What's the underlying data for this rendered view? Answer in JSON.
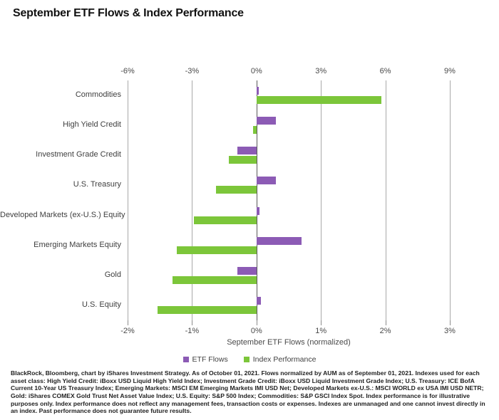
{
  "title": "September ETF Flows & Index Performance",
  "chart_data": {
    "type": "bar",
    "orientation": "horizontal",
    "title": "September ETF Flows & Index Performance",
    "categories": [
      "Commodities",
      "High Yield Credit",
      "Investment Grade Credit",
      "U.S. Treasury",
      "Developed Markets (ex-U.S.) Equity",
      "Emerging Markets Equity",
      "Gold",
      "U.S. Equity"
    ],
    "series": [
      {
        "name": "ETF Flows",
        "axis": "bottom",
        "unit": "%",
        "color": "#8c5bb5",
        "values": [
          0.04,
          0.3,
          -0.3,
          0.3,
          0.05,
          0.7,
          -0.3,
          0.07
        ]
      },
      {
        "name": "Index Performance",
        "axis": "top",
        "unit": "%",
        "color": "#7cc63a",
        "values": [
          5.8,
          -0.15,
          -1.3,
          -1.9,
          -2.9,
          -3.7,
          -3.9,
          -4.6
        ]
      }
    ],
    "axes": {
      "top": {
        "min": -6,
        "max": 9,
        "ticks": [
          "-6%",
          "-3%",
          "0%",
          "3%",
          "6%",
          "9%"
        ]
      },
      "bottom": {
        "min": -2,
        "max": 3,
        "ticks": [
          "-2%",
          "-1%",
          "0%",
          "1%",
          "2%",
          "3%"
        ],
        "label": "September ETF Flows (normalized)"
      }
    },
    "grid": "vertical-only",
    "legend_position": "bottom"
  },
  "legend": {
    "items": [
      "ETF Flows",
      "Index Performance"
    ]
  },
  "footnote": "BlackRock, Bloomberg, chart by iShares Investment Strategy. As of October 01, 2021. Flows normalized by AUM as of September 01, 2021. Indexes used for each asset class: High Yield Credit: iBoxx USD Liquid High Yield Index; Investment Grade Credit: iBoxx USD Liquid Investment Grade Index; U.S. Treasury: ICE BofA Current 10-Year US Treasury Index; Emerging Markets: MSCI EM Emerging Markets IMI USD Net; Developed Markets ex-U.S.: MSCI WORLD ex USA IMI USD NETR; Gold: iShares COMEX Gold Trust Net Asset Value Index; U.S. Equity: S&P 500 Index; Commodities: S&P GSCI Index Spot. Index performance is for illustrative purposes only. Index performance does not reflect any management fees, transaction costs or expenses. Indexes are unmanaged and one cannot invest directly in an index. Past performance does not guarantee future results."
}
